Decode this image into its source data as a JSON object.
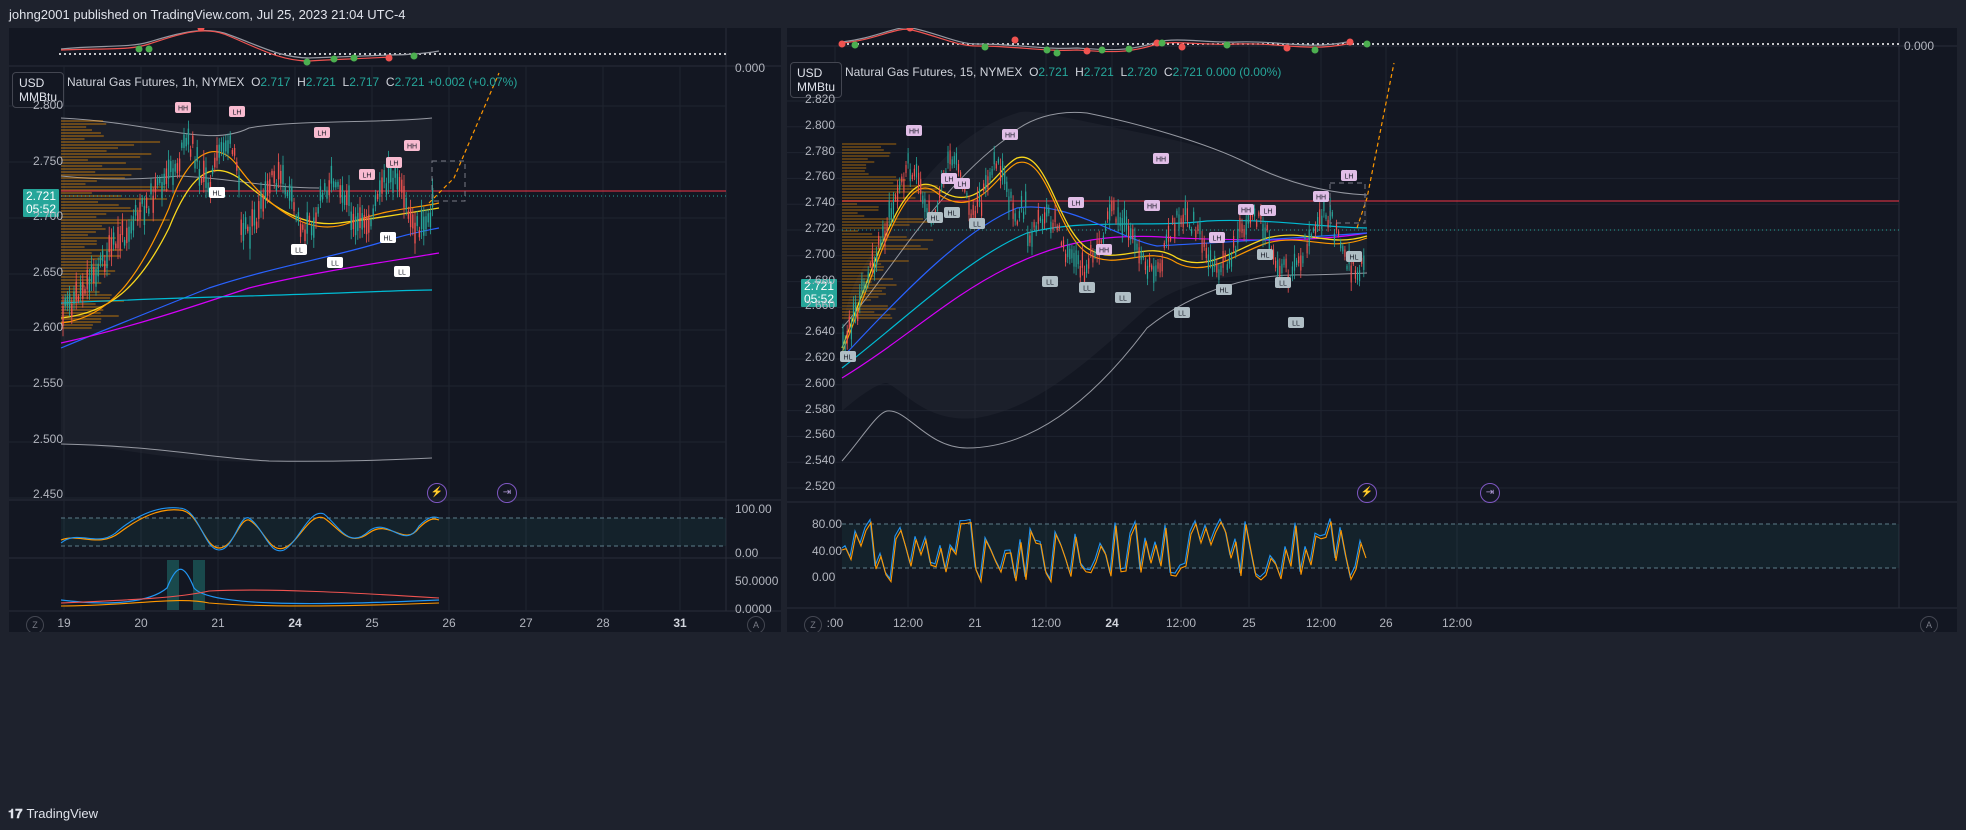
{
  "header": {
    "publisher_line": "johng2001 published on TradingView.com, Jul 25, 2023 21:04 UTC-4"
  },
  "footer": {
    "brand": "TradingView",
    "brand_icon": "tradingview-logo-icon"
  },
  "left_chart": {
    "currency_unit_line1": "USD",
    "currency_unit_line2": "MMBtu",
    "title": "Natural Gas Futures, 1h, NYMEX",
    "ohlc": {
      "o_label": "O",
      "o": "2.717",
      "h_label": "H",
      "h": "2.721",
      "l_label": "L",
      "l": "2.717",
      "c_label": "C",
      "c": "2.721",
      "change": "+0.002 (+0.07%)"
    },
    "price_label": "2.721",
    "countdown": "05:52",
    "top_osc_value": "0.000",
    "price_ticks": [
      "2.800",
      "2.750",
      "2.700",
      "2.650",
      "2.600",
      "2.550",
      "2.500",
      "2.450"
    ],
    "stoch_ticks": [
      "100.00",
      "0.00"
    ],
    "adx_ticks": [
      "50.0000",
      "0.0000"
    ],
    "time_ticks": [
      {
        "label": "19",
        "bold": false
      },
      {
        "label": "20",
        "bold": false
      },
      {
        "label": "21",
        "bold": false
      },
      {
        "label": "24",
        "bold": true
      },
      {
        "label": "25",
        "bold": false
      },
      {
        "label": "26",
        "bold": false
      },
      {
        "label": "27",
        "bold": false
      },
      {
        "label": "28",
        "bold": false
      },
      {
        "label": "31",
        "bold": true
      }
    ],
    "structure_labels": [
      "HH",
      "LH",
      "LH",
      "LH",
      "LH",
      "HH",
      "HL",
      "LL",
      "LL",
      "HL",
      "LL"
    ],
    "buttons": {
      "z": "Z",
      "a": "A"
    }
  },
  "right_chart": {
    "currency_unit_line1": "USD",
    "currency_unit_line2": "MMBtu",
    "title": "Natural Gas Futures, 15, NYMEX",
    "ohlc": {
      "o_label": "O",
      "o": "2.721",
      "h_label": "H",
      "h": "2.721",
      "l_label": "L",
      "l": "2.720",
      "c_label": "C",
      "c": "2.721",
      "change": "0.000 (0.00%)"
    },
    "price_label": "2.721",
    "countdown": "05:52",
    "top_osc_value": "0.000",
    "price_ticks": [
      "2.820",
      "2.800",
      "2.780",
      "2.760",
      "2.740",
      "2.720",
      "2.700",
      "2.680",
      "2.660",
      "2.640",
      "2.620",
      "2.600",
      "2.580",
      "2.560",
      "2.540",
      "2.520"
    ],
    "stoch_ticks": [
      "80.00",
      "40.00",
      "0.00"
    ],
    "time_ticks": [
      {
        "label": ":00",
        "bold": false
      },
      {
        "label": "12:00",
        "bold": false
      },
      {
        "label": "21",
        "bold": false
      },
      {
        "label": "12:00",
        "bold": false
      },
      {
        "label": "24",
        "bold": true
      },
      {
        "label": "12:00",
        "bold": false
      },
      {
        "label": "25",
        "bold": false
      },
      {
        "label": "12:00",
        "bold": false
      },
      {
        "label": "26",
        "bold": false
      },
      {
        "label": "12:00",
        "bold": false
      }
    ],
    "structure_labels": [
      "HH",
      "HH",
      "LH",
      "LH",
      "HL",
      "HL",
      "LL",
      "HH",
      "LH",
      "LH",
      "HH",
      "LH",
      "HH",
      "LH",
      "HH",
      "HH",
      "HL",
      "HL",
      "LL",
      "LL",
      "LL",
      "LL",
      "LL",
      "HL",
      "LL",
      "HL"
    ],
    "buttons": {
      "z": "Z",
      "a": "A"
    }
  },
  "colors": {
    "up": "#26a69a",
    "down": "#ef5350",
    "bg": "#131722",
    "frame": "#1e222d",
    "grid": "#1f2430",
    "price_line": "#f23645",
    "ema_yellow": "#f9d71c",
    "ema_orange": "#ff9800",
    "ema_blue": "#2962ff",
    "ema_purple": "#d500f9",
    "ema_teal": "#00bcd4",
    "band": "#9598a1"
  }
}
